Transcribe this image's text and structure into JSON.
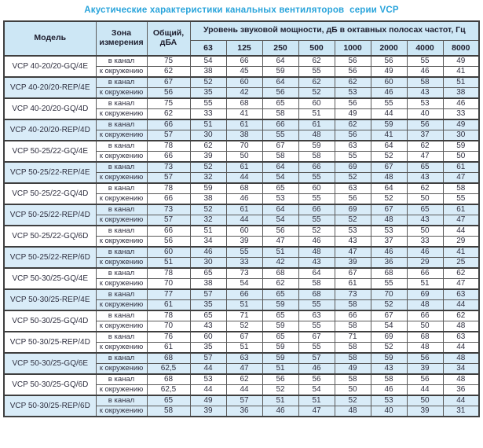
{
  "title": "Акустические характеристики канальных вентиляторов  серии VCP",
  "colors": {
    "title_blue": "#29A4DB",
    "header_bg": "#CDE7F5",
    "tint_row_bg": "#D9ECF8",
    "border_dark": "#3F3F3F",
    "border_mid": "#5A5A5A",
    "text_dark": "#303040"
  },
  "table": {
    "headers": {
      "model": "Модель",
      "zone": "Зона измерения",
      "total": "Общий, дБА",
      "group": "Уровень звуковой мощности, дБ в октавных полосах частот, Гц",
      "frequencies": [
        "63",
        "125",
        "250",
        "500",
        "1000",
        "2000",
        "4000",
        "8000"
      ]
    },
    "models": [
      {
        "name": "VCP 40-20/20-GQ/4E",
        "tinted": false,
        "rows": [
          {
            "zone": "в канал",
            "total": "75",
            "levels": [
              "54",
              "66",
              "64",
              "62",
              "56",
              "56",
              "55",
              "49"
            ]
          },
          {
            "zone": "к окружению",
            "total": "62",
            "levels": [
              "38",
              "45",
              "59",
              "55",
              "56",
              "49",
              "46",
              "41"
            ]
          }
        ]
      },
      {
        "name": "VCP 40-20/20-REP/4E",
        "tinted": true,
        "rows": [
          {
            "zone": "в канал",
            "total": "67",
            "levels": [
              "52",
              "60",
              "64",
              "62",
              "62",
              "60",
              "58",
              "51"
            ]
          },
          {
            "zone": "к окружению",
            "total": "56",
            "levels": [
              "35",
              "42",
              "56",
              "52",
              "53",
              "46",
              "43",
              "38"
            ]
          }
        ]
      },
      {
        "name": "VCP 40-20/20-GQ/4D",
        "tinted": false,
        "rows": [
          {
            "zone": "в канал",
            "total": "75",
            "levels": [
              "55",
              "68",
              "65",
              "60",
              "56",
              "55",
              "53",
              "46"
            ]
          },
          {
            "zone": "к окружению",
            "total": "62",
            "levels": [
              "33",
              "41",
              "58",
              "51",
              "49",
              "44",
              "40",
              "33"
            ]
          }
        ]
      },
      {
        "name": "VCP 40-20/20-REP/4D",
        "tinted": true,
        "rows": [
          {
            "zone": "в канал",
            "total": "66",
            "levels": [
              "51",
              "61",
              "66",
              "61",
              "62",
              "59",
              "56",
              "49"
            ]
          },
          {
            "zone": "к окружению",
            "total": "57",
            "levels": [
              "30",
              "38",
              "55",
              "48",
              "56",
              "41",
              "37",
              "30"
            ]
          }
        ]
      },
      {
        "name": "VCP 50-25/22-GQ/4E",
        "tinted": false,
        "rows": [
          {
            "zone": "в канал",
            "total": "78",
            "levels": [
              "62",
              "70",
              "67",
              "59",
              "63",
              "64",
              "62",
              "59"
            ]
          },
          {
            "zone": "к окружению",
            "total": "66",
            "levels": [
              "39",
              "50",
              "58",
              "58",
              "55",
              "52",
              "47",
              "50"
            ]
          }
        ]
      },
      {
        "name": "VCP 50-25/22-REP/4E",
        "tinted": true,
        "rows": [
          {
            "zone": "в канал",
            "total": "73",
            "levels": [
              "52",
              "61",
              "64",
              "66",
              "69",
              "67",
              "65",
              "61"
            ]
          },
          {
            "zone": "к окружению",
            "total": "57",
            "levels": [
              "32",
              "44",
              "54",
              "55",
              "52",
              "48",
              "43",
              "47"
            ]
          }
        ]
      },
      {
        "name": "VCP 50-25/22-GQ/4D",
        "tinted": false,
        "rows": [
          {
            "zone": "в канал",
            "total": "78",
            "levels": [
              "59",
              "68",
              "65",
              "60",
              "63",
              "64",
              "62",
              "58"
            ]
          },
          {
            "zone": "к окружению",
            "total": "66",
            "levels": [
              "38",
              "46",
              "53",
              "55",
              "56",
              "52",
              "50",
              "55"
            ]
          }
        ]
      },
      {
        "name": "VCP 50-25/22-REP/4D",
        "tinted": true,
        "rows": [
          {
            "zone": "в канал",
            "total": "73",
            "levels": [
              "52",
              "61",
              "64",
              "66",
              "69",
              "67",
              "65",
              "61"
            ]
          },
          {
            "zone": "к окружению",
            "total": "57",
            "levels": [
              "32",
              "44",
              "54",
              "55",
              "52",
              "48",
              "43",
              "47"
            ]
          }
        ]
      },
      {
        "name": "VCP 50-25/22-GQ/6D",
        "tinted": false,
        "rows": [
          {
            "zone": "в канал",
            "total": "66",
            "levels": [
              "51",
              "60",
              "56",
              "52",
              "53",
              "53",
              "50",
              "44"
            ]
          },
          {
            "zone": "к окружению",
            "total": "56",
            "levels": [
              "34",
              "39",
              "47",
              "46",
              "43",
              "37",
              "33",
              "29"
            ]
          }
        ]
      },
      {
        "name": "VCP 50-25/22-REP/6D",
        "tinted": true,
        "rows": [
          {
            "zone": "в канал",
            "total": "60",
            "levels": [
              "46",
              "55",
              "51",
              "48",
              "47",
              "46",
              "46",
              "41"
            ]
          },
          {
            "zone": "к окружению",
            "total": "51",
            "levels": [
              "30",
              "33",
              "42",
              "43",
              "39",
              "36",
              "29",
              "25"
            ]
          }
        ]
      },
      {
        "name": "VCP 50-30/25-GQ/4E",
        "tinted": false,
        "rows": [
          {
            "zone": "в канал",
            "total": "78",
            "levels": [
              "65",
              "73",
              "68",
              "64",
              "67",
              "68",
              "66",
              "62"
            ]
          },
          {
            "zone": "к окружению",
            "total": "70",
            "levels": [
              "38",
              "54",
              "62",
              "58",
              "61",
              "55",
              "51",
              "47"
            ]
          }
        ]
      },
      {
        "name": "VCP 50-30/25-REP/4E",
        "tinted": true,
        "rows": [
          {
            "zone": "в канал",
            "total": "77",
            "levels": [
              "57",
              "66",
              "65",
              "68",
              "73",
              "70",
              "69",
              "63"
            ]
          },
          {
            "zone": "к окружению",
            "total": "61",
            "levels": [
              "35",
              "51",
              "59",
              "55",
              "58",
              "52",
              "48",
              "44"
            ]
          }
        ]
      },
      {
        "name": "VCP 50-30/25-GQ/4D",
        "tinted": false,
        "rows": [
          {
            "zone": "в канал",
            "total": "78",
            "levels": [
              "65",
              "71",
              "65",
              "63",
              "66",
              "67",
              "66",
              "62"
            ]
          },
          {
            "zone": "к окружению",
            "total": "70",
            "levels": [
              "43",
              "52",
              "59",
              "55",
              "58",
              "54",
              "50",
              "48"
            ]
          }
        ]
      },
      {
        "name": "VCP 50-30/25-REP/4D",
        "tinted": false,
        "rows": [
          {
            "zone": "в канал",
            "total": "76",
            "levels": [
              "60",
              "67",
              "65",
              "67",
              "71",
              "69",
              "68",
              "63"
            ]
          },
          {
            "zone": "к окружению",
            "total": "61",
            "levels": [
              "35",
              "51",
              "59",
              "55",
              "58",
              "52",
              "48",
              "44"
            ]
          }
        ]
      },
      {
        "name": "VCP 50-30/25-GQ/6E",
        "tinted": true,
        "rows": [
          {
            "zone": "в канал",
            "total": "68",
            "levels": [
              "57",
              "63",
              "59",
              "57",
              "58",
              "59",
              "56",
              "48"
            ]
          },
          {
            "zone": "к окружению",
            "total": "62,5",
            "levels": [
              "44",
              "47",
              "51",
              "46",
              "49",
              "43",
              "39",
              "34"
            ]
          }
        ]
      },
      {
        "name": "VCP 50-30/25-GQ/6D",
        "tinted": false,
        "rows": [
          {
            "zone": "в канал",
            "total": "68",
            "levels": [
              "53",
              "62",
              "56",
              "56",
              "58",
              "58",
              "56",
              "48"
            ]
          },
          {
            "zone": "к окружению",
            "total": "62,5",
            "levels": [
              "44",
              "44",
              "52",
              "54",
              "50",
              "46",
              "44",
              "36"
            ]
          }
        ]
      },
      {
        "name": "VCP 50-30/25-REP/6D",
        "tinted": true,
        "rows": [
          {
            "zone": "в канал",
            "total": "65",
            "levels": [
              "49",
              "57",
              "51",
              "51",
              "52",
              "53",
              "50",
              "44"
            ]
          },
          {
            "zone": "к окружению",
            "total": "58",
            "levels": [
              "39",
              "36",
              "46",
              "47",
              "48",
              "40",
              "39",
              "31"
            ]
          }
        ]
      }
    ]
  }
}
